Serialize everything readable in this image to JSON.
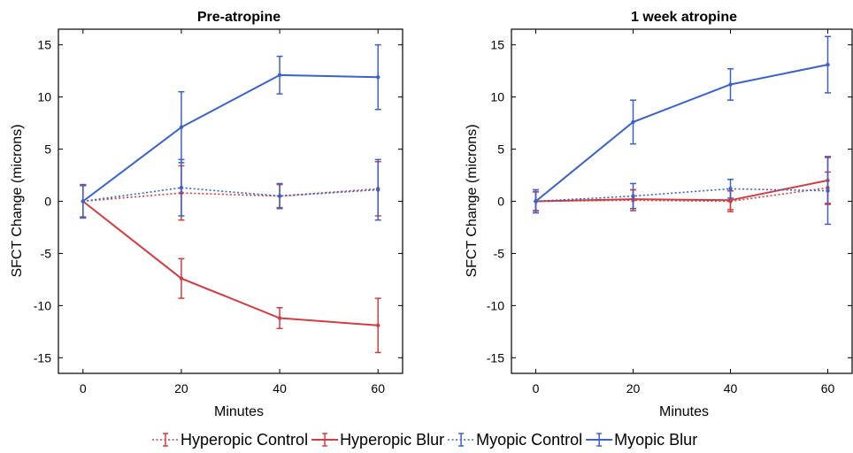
{
  "chart_data": [
    {
      "type": "line",
      "title": "Pre-atropine",
      "xlabel": "Minutes",
      "ylabel": "SFCT Change (microns)",
      "xlim": [
        -5,
        65
      ],
      "ylim": [
        -16.5,
        16.5
      ],
      "x": [
        0,
        20,
        40,
        60
      ],
      "xticks": [
        0,
        20,
        40,
        60
      ],
      "yticks": [
        15,
        10,
        5,
        0,
        -5,
        -10,
        -15
      ],
      "grid": false,
      "series": [
        {
          "name": "Hyperopic Control",
          "values": [
            0,
            0.8,
            0.5,
            1.2
          ],
          "error": [
            1.5,
            2.6,
            1.1,
            2.6
          ]
        },
        {
          "name": "Hyperopic Blur",
          "values": [
            0,
            -7.4,
            -11.2,
            -11.9
          ],
          "error": [
            1.5,
            1.9,
            1.0,
            2.6
          ]
        },
        {
          "name": "Myopic Control",
          "values": [
            0,
            1.3,
            0.5,
            1.1
          ],
          "error": [
            1.6,
            2.7,
            1.2,
            2.9
          ]
        },
        {
          "name": "Myopic Blur",
          "values": [
            0,
            7.1,
            12.1,
            11.9
          ],
          "error": [
            1.6,
            3.4,
            1.8,
            3.1
          ]
        }
      ]
    },
    {
      "type": "line",
      "title": "1 week atropine",
      "xlabel": "Minutes",
      "ylabel": "SFCT Change (microns)",
      "xlim": [
        -5,
        65
      ],
      "ylim": [
        -16.5,
        16.5
      ],
      "x": [
        0,
        20,
        40,
        60
      ],
      "xticks": [
        0,
        20,
        40,
        60
      ],
      "yticks": [
        15,
        10,
        5,
        0,
        -5,
        -10,
        -15
      ],
      "grid": false,
      "series": [
        {
          "name": "Hyperopic Control",
          "values": [
            0,
            0.1,
            0.0,
            1.3
          ],
          "error": [
            0.9,
            1.0,
            1.0,
            1.5
          ]
        },
        {
          "name": "Hyperopic Blur",
          "values": [
            0,
            0.2,
            0.1,
            2.0
          ],
          "error": [
            0.9,
            0.9,
            0.9,
            2.3
          ]
        },
        {
          "name": "Myopic Control",
          "values": [
            0,
            0.5,
            1.2,
            1.0
          ],
          "error": [
            1.1,
            1.2,
            0.9,
            3.2
          ]
        },
        {
          "name": "Myopic Blur",
          "values": [
            0,
            7.6,
            11.2,
            13.1
          ],
          "error": [
            1.1,
            2.1,
            1.5,
            2.7
          ]
        }
      ]
    }
  ],
  "legend": {
    "placement": "bottom",
    "items": [
      {
        "label": "Hyperopic Control",
        "color": "#cf3e43",
        "dash": "dotted"
      },
      {
        "label": "Hyperopic Blur",
        "color": "#cf3e43",
        "dash": "solid"
      },
      {
        "label": "Myopic Control",
        "color": "#3a62c8",
        "dash": "dotted"
      },
      {
        "label": "Myopic Blur",
        "color": "#3a62c8",
        "dash": "solid"
      }
    ]
  }
}
